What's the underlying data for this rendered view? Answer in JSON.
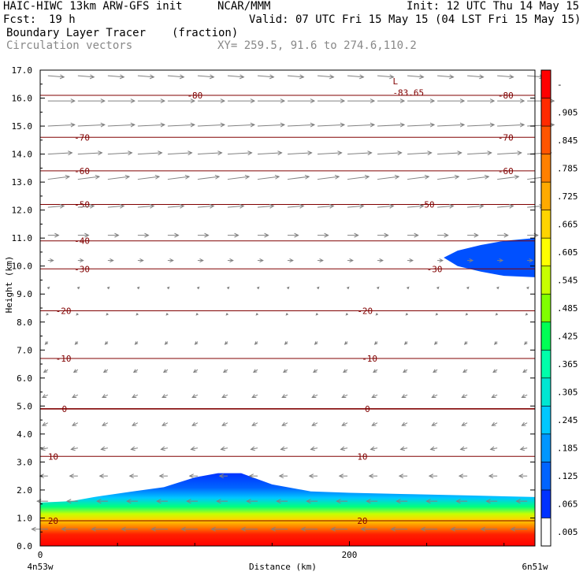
{
  "header": {
    "model": "HAIC-HIWC 13km ARW-GFS init",
    "org": "NCAR/MMM",
    "init": "Init: 12 UTC Thu 14 May 15",
    "fcst_label": "Fcst:",
    "fcst_value": "19 h",
    "valid": "Valid: 07 UTC Fri 15 May 15 (04 LST Fri 15 May 15)",
    "field": "Boundary Layer Tracer",
    "units": "(fraction)",
    "vectors": "Circulation vectors",
    "xy": "XY= 259.5, 91.6 to 274.6,110.2"
  },
  "chart_data": {
    "type": "heatmap",
    "title": "Boundary Layer Tracer",
    "subtitle": "(fraction)",
    "xlabel": "Distance (km)",
    "ylabel": "Height (km)",
    "xlim": [
      0,
      320
    ],
    "ylim": [
      0,
      17
    ],
    "x_ticks": [
      "0",
      "200"
    ],
    "x_end_labels": {
      "left": "4n53w",
      "right": "6n51w"
    },
    "y_ticks": [
      "0.0",
      "1.0",
      "2.0",
      "3.0",
      "4.0",
      "5.0",
      "6.0",
      "7.0",
      "8.0",
      "9.0",
      "10.0",
      "11.0",
      "12.0",
      "13.0",
      "14.0",
      "15.0",
      "16.0",
      "17.0"
    ],
    "colorbar": {
      "labels": [
        "-",
        ".905",
        ".845",
        ".785",
        ".725",
        ".665",
        ".605",
        ".545",
        ".485",
        ".425",
        ".365",
        ".305",
        ".245",
        ".185",
        ".125",
        ".065",
        ".005"
      ],
      "colors": [
        "#ff0000",
        "#ff2a00",
        "#ff5500",
        "#ff8000",
        "#ffaa00",
        "#ffd400",
        "#ffff00",
        "#c8ff00",
        "#80ff00",
        "#00ff55",
        "#00ffaa",
        "#00e6d2",
        "#00c8ff",
        "#0096ff",
        "#0064ff",
        "#0032ff",
        "#ffffff"
      ]
    },
    "temperature_contours": {
      "color": "#800000",
      "levels": [
        {
          "value": 20,
          "height_km": 0.9,
          "labels": [
            {
              "text": "20",
              "x": 5
            },
            {
              "text": "20",
              "x": 205
            }
          ]
        },
        {
          "value": 10,
          "height_km": 3.2,
          "labels": [
            {
              "text": "10",
              "x": 5
            },
            {
              "text": "10",
              "x": 205
            }
          ]
        },
        {
          "value": 0,
          "height_km": 4.9,
          "labels": [
            {
              "text": "0",
              "x": 14
            },
            {
              "text": "0",
              "x": 210
            }
          ]
        },
        {
          "value": -10,
          "height_km": 6.7,
          "labels": [
            {
              "text": "-10",
              "x": 10
            },
            {
              "text": "-10",
              "x": 208
            }
          ]
        },
        {
          "value": -20,
          "height_km": 8.4,
          "labels": [
            {
              "text": "-20",
              "x": 10
            },
            {
              "text": "-20",
              "x": 205
            }
          ]
        },
        {
          "value": -30,
          "height_km": 9.9,
          "labels": [
            {
              "text": "-30",
              "x": 22
            },
            {
              "text": "-30",
              "x": 250
            }
          ]
        },
        {
          "value": -40,
          "height_km": 10.9,
          "labels": [
            {
              "text": "-40",
              "x": 22
            }
          ]
        },
        {
          "value": -50,
          "height_km": 12.2,
          "labels": [
            {
              "text": "-50",
              "x": 22
            },
            {
              "text": "-50",
              "x": 245
            }
          ]
        },
        {
          "value": -60,
          "height_km": 13.4,
          "labels": [
            {
              "text": "-60",
              "x": 22
            },
            {
              "text": "-60",
              "x": 296
            }
          ]
        },
        {
          "value": -70,
          "height_km": 14.6,
          "labels": [
            {
              "text": "-70",
              "x": 22
            },
            {
              "text": "-70",
              "x": 296
            }
          ]
        },
        {
          "value": -80,
          "height_km": 16.1,
          "labels": [
            {
              "text": "-80",
              "x": 95
            },
            {
              "text": "-80",
              "x": 296
            }
          ]
        }
      ],
      "annotations": [
        {
          "text": "L",
          "x": 228,
          "y": 16.6
        },
        {
          "text": "-83.65",
          "x": 228,
          "y": 16.2
        }
      ]
    },
    "tracer_regions": [
      {
        "name": "boundary layer",
        "top_heights_km": [
          [
            0,
            1.55
          ],
          [
            20,
            1.6
          ],
          [
            35,
            1.75
          ],
          [
            60,
            1.95
          ],
          [
            80,
            2.1
          ],
          [
            100,
            2.45
          ],
          [
            115,
            2.6
          ],
          [
            130,
            2.6
          ],
          [
            150,
            2.2
          ],
          [
            175,
            1.95
          ],
          [
            200,
            1.9
          ],
          [
            240,
            1.85
          ],
          [
            280,
            1.8
          ],
          [
            320,
            1.75
          ]
        ]
      },
      {
        "name": "upper blob",
        "outline": [
          [
            261,
            10.3
          ],
          [
            270,
            10.55
          ],
          [
            285,
            10.75
          ],
          [
            300,
            10.9
          ],
          [
            320,
            11.0
          ],
          [
            320,
            9.6
          ],
          [
            300,
            9.65
          ],
          [
            285,
            9.8
          ],
          [
            270,
            10.0
          ],
          [
            261,
            10.3
          ]
        ]
      }
    ],
    "wind_vectors": {
      "rows": [
        {
          "height_km": 16.8,
          "u": 0.6,
          "w": -0.05
        },
        {
          "height_km": 15.9,
          "u": 1.0,
          "w": 0.0
        },
        {
          "height_km": 15.0,
          "u": 1.0,
          "w": 0.05
        },
        {
          "height_km": 14.0,
          "u": 0.9,
          "w": 0.05
        },
        {
          "height_km": 13.1,
          "u": 0.8,
          "w": 0.1
        },
        {
          "height_km": 12.1,
          "u": 0.6,
          "w": 0.05
        },
        {
          "height_km": 11.1,
          "u": 0.4,
          "w": 0.0
        },
        {
          "height_km": 10.2,
          "u": 0.2,
          "w": 0.0
        },
        {
          "height_km": 9.2,
          "u": 0.05,
          "w": 0.05
        },
        {
          "height_km": 8.3,
          "u": -0.05,
          "w": -0.05
        },
        {
          "height_km": 7.3,
          "u": -0.1,
          "w": -0.1
        },
        {
          "height_km": 6.3,
          "u": -0.15,
          "w": -0.1
        },
        {
          "height_km": 5.4,
          "u": -0.2,
          "w": -0.1
        },
        {
          "height_km": 4.4,
          "u": -0.2,
          "w": -0.1
        },
        {
          "height_km": 3.5,
          "u": -0.25,
          "w": -0.05
        },
        {
          "height_km": 2.5,
          "u": -0.3,
          "w": 0.0
        },
        {
          "height_km": 1.6,
          "u": -0.4,
          "w": 0.0
        },
        {
          "height_km": 0.6,
          "u": -0.6,
          "w": 0.0
        }
      ],
      "columns": 17,
      "color": "#808080"
    }
  }
}
